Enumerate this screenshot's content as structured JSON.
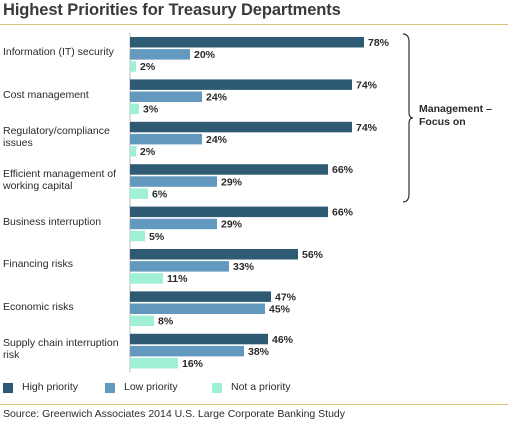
{
  "chart_data": {
    "type": "bar",
    "orientation": "horizontal",
    "title": "Highest Priorities for Treasury Departments",
    "categories": [
      "Information (IT) security",
      "Cost management",
      "Regulatory/compliance issues",
      "Efficient management of working capital",
      "Business interruption",
      "Financing risks",
      "Economic risks",
      "Supply chain interruption risk"
    ],
    "series": [
      {
        "name": "High priority",
        "color": "#2e5a73",
        "values": [
          78,
          74,
          74,
          66,
          66,
          56,
          47,
          46
        ]
      },
      {
        "name": "Low priority",
        "color": "#6499bf",
        "values": [
          20,
          24,
          24,
          29,
          29,
          33,
          45,
          38
        ]
      },
      {
        "name": "Not a priority",
        "color": "#9ff0d6",
        "values": [
          2,
          3,
          2,
          6,
          5,
          11,
          8,
          16
        ]
      }
    ],
    "value_suffix": "%",
    "xlim": [
      0,
      100
    ],
    "grid": false,
    "legend_position": "bottom",
    "annotation": {
      "text": "Management – Focus on",
      "spans_categories": [
        0,
        3
      ]
    },
    "source": "Source: Greenwich Associates 2014 U.S. Large Corporate Banking Study"
  }
}
